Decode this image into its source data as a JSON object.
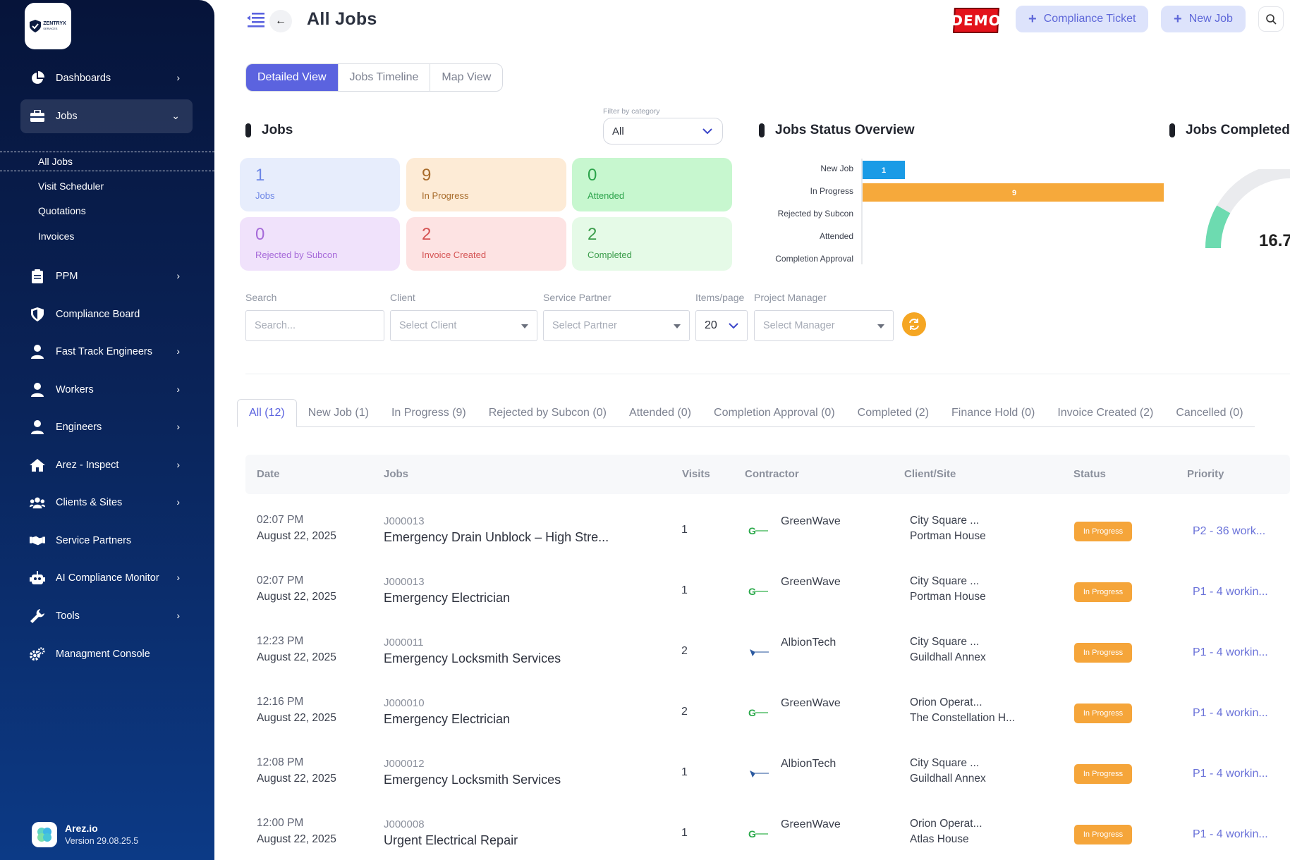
{
  "sidebar": {
    "logo_text": "ZENTRYX",
    "logo_sub": "SERVICES",
    "items": [
      {
        "label": "Dashboards",
        "icon": "pie-chart-icon"
      },
      {
        "label": "Jobs",
        "icon": "briefcase-icon"
      },
      {
        "label": "PPM",
        "icon": "clipboard-icon"
      },
      {
        "label": "Compliance Board",
        "icon": "shield-icon"
      },
      {
        "label": "Fast Track Engineers",
        "icon": "user-icon"
      },
      {
        "label": "Workers",
        "icon": "user-icon"
      },
      {
        "label": "Engineers",
        "icon": "user-icon"
      },
      {
        "label": "Arez - Inspect",
        "icon": "home-icon"
      },
      {
        "label": "Clients & Sites",
        "icon": "users-icon"
      },
      {
        "label": "Service Partners",
        "icon": "handshake-icon"
      },
      {
        "label": "AI Compliance Monitor",
        "icon": "robot-icon"
      },
      {
        "label": "Tools",
        "icon": "wrench-icon"
      },
      {
        "label": "Managment Console",
        "icon": "cogs-icon"
      }
    ],
    "jobs_sub": [
      "All Jobs",
      "Visit Scheduler",
      "Quotations",
      "Invoices"
    ],
    "footer_name": "Arez.io",
    "footer_version": "Version 29.08.25.5"
  },
  "header": {
    "title": "All Jobs",
    "demo": "DEMO",
    "compliance_ticket": "Compliance Ticket",
    "new_job": "New Job"
  },
  "views": [
    "Detailed View",
    "Jobs Timeline",
    "Map View"
  ],
  "jobs_section": {
    "title": "Jobs",
    "filter_caption": "Filter by category",
    "filter_value": "All",
    "cards": [
      {
        "value": "1",
        "label": "Jobs"
      },
      {
        "value": "9",
        "label": "In Progress"
      },
      {
        "value": "0",
        "label": "Attended"
      },
      {
        "value": "0",
        "label": "Rejected by Subcon"
      },
      {
        "value": "2",
        "label": "Invoice Created"
      },
      {
        "value": "2",
        "label": "Completed"
      }
    ]
  },
  "status_overview": {
    "title": "Jobs Status Overview"
  },
  "completed_section": {
    "title": "Jobs Completed",
    "gauge_value": "16.7"
  },
  "chart_data": {
    "type": "bar",
    "orientation": "horizontal",
    "categories": [
      "New Job",
      "In Progress",
      "Rejected by Subcon",
      "Attended",
      "Completion Approval"
    ],
    "values": [
      1,
      9,
      0,
      0,
      null
    ],
    "colors": [
      "#1a9be6",
      "#f6a93b",
      "#1a9be6",
      "#1a9be6",
      "#1a9be6"
    ],
    "title": "Jobs Status Overview"
  },
  "filters": {
    "search_label": "Search",
    "search_placeholder": "Search...",
    "client_label": "Client",
    "client_placeholder": "Select Client",
    "partner_label": "Service Partner",
    "partner_placeholder": "Select Partner",
    "items_label": "Items/page",
    "items_value": "20",
    "manager_label": "Project Manager",
    "manager_placeholder": "Select Manager"
  },
  "tabs": [
    "All (12)",
    "New Job (1)",
    "In Progress (9)",
    "Rejected by Subcon (0)",
    "Attended (0)",
    "Completion Approval (0)",
    "Completed (2)",
    "Finance Hold (0)",
    "Invoice Created (2)",
    "Cancelled (0)"
  ],
  "table": {
    "headers": [
      "Date",
      "Jobs",
      "Visits",
      "Contractor",
      "Client/Site",
      "Status",
      "Priority"
    ],
    "rows": [
      {
        "time": "02:07 PM",
        "date": "August 22, 2025",
        "id": "J000013",
        "name": "Emergency Drain Unblock – High Stre...",
        "visits": "1",
        "contractor": "GreenWave",
        "site1": "City Square ...",
        "site2": "Portman House",
        "status": "In Progress",
        "priority": "P2 - 36 work..."
      },
      {
        "time": "02:07 PM",
        "date": "August 22, 2025",
        "id": "J000013",
        "name": "Emergency Electrician",
        "visits": "1",
        "contractor": "GreenWave",
        "site1": "City Square ...",
        "site2": "Portman House",
        "status": "In Progress",
        "priority": "P1 - 4 workin..."
      },
      {
        "time": "12:23 PM",
        "date": "August 22, 2025",
        "id": "J000011",
        "name": "Emergency Locksmith Services",
        "visits": "2",
        "contractor": "AlbionTech",
        "site1": "City Square ...",
        "site2": "Guildhall Annex",
        "status": "In Progress",
        "priority": "P1 - 4 workin..."
      },
      {
        "time": "12:16 PM",
        "date": "August 22, 2025",
        "id": "J000010",
        "name": "Emergency Electrician",
        "visits": "2",
        "contractor": "GreenWave",
        "site1": "Orion Operat...",
        "site2": "The Constellation H...",
        "status": "In Progress",
        "priority": "P1 - 4 workin..."
      },
      {
        "time": "12:08 PM",
        "date": "August 22, 2025",
        "id": "J000012",
        "name": "Emergency Locksmith Services",
        "visits": "1",
        "contractor": "AlbionTech",
        "site1": "City Square ...",
        "site2": "Guildhall Annex",
        "status": "In Progress",
        "priority": "P1 - 4 workin..."
      },
      {
        "time": "12:00 PM",
        "date": "August 22, 2025",
        "id": "J000008",
        "name": "Urgent Electrical Repair",
        "visits": "1",
        "contractor": "GreenWave",
        "site1": "Orion Operat...",
        "site2": "Atlas House",
        "status": "In Progress",
        "priority": "P1 - 4 workin..."
      }
    ]
  }
}
